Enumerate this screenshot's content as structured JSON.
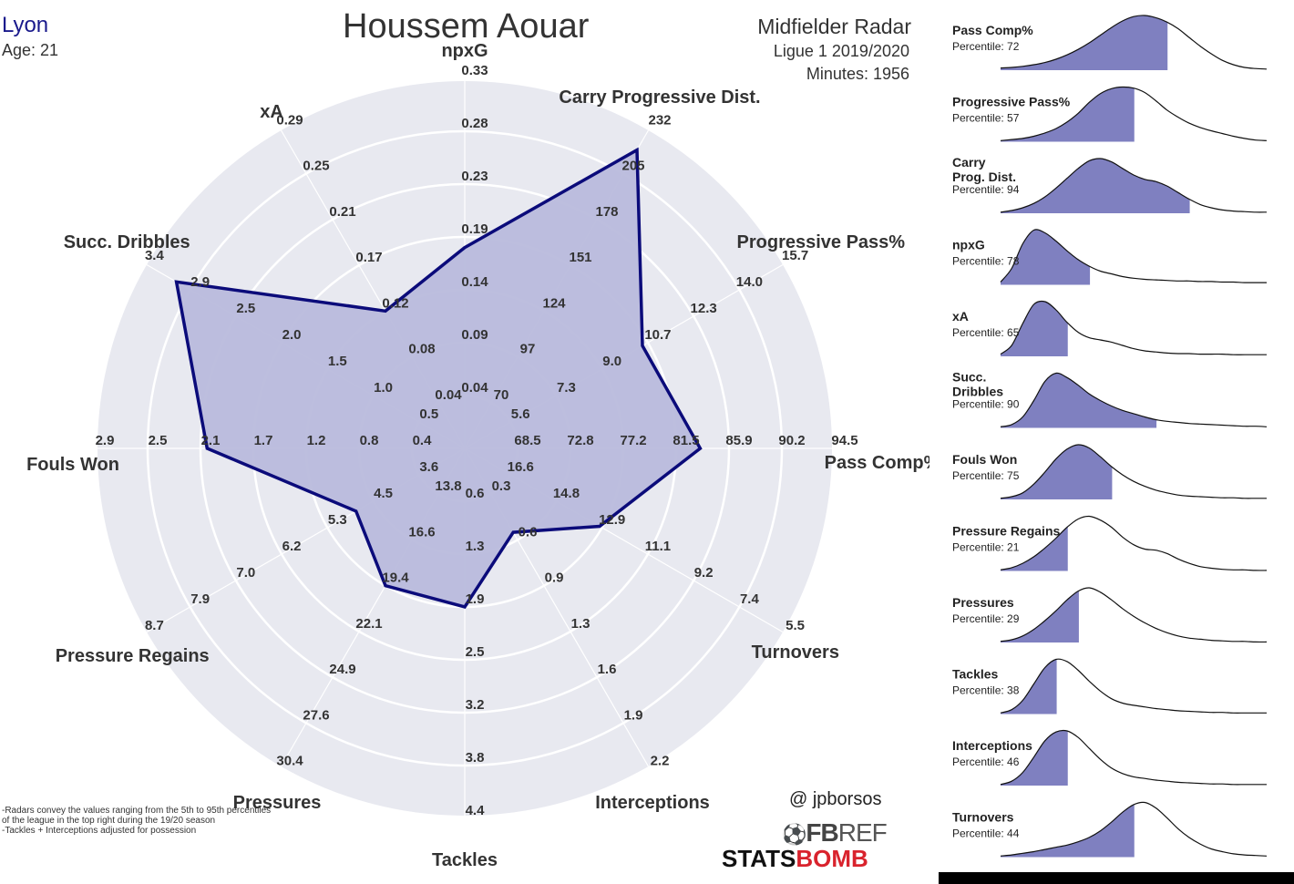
{
  "header": {
    "team": "Lyon",
    "age_label": "Age: 21",
    "player": "Houssem Aouar",
    "radar_type": "Midfielder Radar",
    "league_season": "Ligue 1 2019/2020",
    "minutes_label": "Minutes: 1956"
  },
  "footer": {
    "handle": "@ jpborsos",
    "notes": [
      "-Radars convey the values ranging from the 5th to 95th percentiles",
      "of the league in the top right during the 19/20 season",
      "-Tackles + Interceptions adjusted for possession"
    ],
    "logo_fbref_left": "FB",
    "logo_fbref_right": "REF",
    "logo_statsbomb_left": "STATS",
    "logo_statsbomb_right": "BOMB"
  },
  "colors": {
    "fill": "#b9bbdc",
    "line": "#0b0b7a",
    "background_circle": "#e8e9f0",
    "ring": "#ffffff",
    "density_fill": "#7f80c0"
  },
  "chart_data": [
    {
      "type": "radar",
      "title": "Houssem Aouar",
      "axes": [
        {
          "name": "npxG",
          "ticks": [
            "0.04",
            "0.09",
            "0.14",
            "0.19",
            "0.23",
            "0.28",
            "0.33"
          ],
          "value": 0.18
        },
        {
          "name": "Carry Progressive Dist.",
          "ticks": [
            "70",
            "97",
            "124",
            "151",
            "178",
            "205",
            "232"
          ],
          "value": 219
        },
        {
          "name": "Progressive Pass%",
          "ticks": [
            "5.6",
            "7.3",
            "9.0",
            "10.7",
            "12.3",
            "14.0",
            "15.7"
          ],
          "value": 10.5
        },
        {
          "name": "Pass Comp%",
          "ticks": [
            "68.5",
            "72.8",
            "77.2",
            "81.5",
            "85.9",
            "90.2",
            "94.5"
          ],
          "value": 83.5
        },
        {
          "name": "Turnovers",
          "ticks": [
            "16.6",
            "14.8",
            "12.9",
            "11.1",
            "9.2",
            "7.4",
            "5.5"
          ],
          "value": 13.0
        },
        {
          "name": "Interceptions",
          "ticks": [
            "0.3",
            "0.6",
            "0.9",
            "1.3",
            "1.6",
            "1.9",
            "2.2"
          ],
          "value": 0.55
        },
        {
          "name": "Tackles",
          "ticks": [
            "0.6",
            "1.3",
            "1.9",
            "2.5",
            "3.2",
            "3.8",
            "4.4"
          ],
          "value": 1.9
        },
        {
          "name": "Pressures",
          "ticks": [
            "13.8",
            "16.6",
            "19.4",
            "22.1",
            "24.9",
            "27.6",
            "30.4"
          ],
          "value": 19.4
        },
        {
          "name": "Pressure Regains",
          "ticks": [
            "3.6",
            "4.5",
            "5.3",
            "6.2",
            "7.0",
            "7.9",
            "8.7"
          ],
          "value": 4.8
        },
        {
          "name": "Fouls Won",
          "ticks": [
            "0.4",
            "0.8",
            "1.2",
            "1.7",
            "2.1",
            "2.5",
            "2.9"
          ],
          "value": 2.05
        },
        {
          "name": "Succ. Dribbles",
          "ticks": [
            "0.5",
            "1.0",
            "1.5",
            "2.0",
            "2.5",
            "2.9",
            "3.4"
          ],
          "value": 3.05
        },
        {
          "name": "xA",
          "ticks": [
            "0.04",
            "0.08",
            "0.12",
            "0.17",
            "0.21",
            "0.25",
            "0.29"
          ],
          "value": 0.12
        }
      ]
    },
    {
      "type": "area",
      "panels": [
        {
          "name": "Pass Comp%",
          "percentile_label": "Percentile: 72",
          "percentile": 72,
          "density": [
            0.04,
            0.05,
            0.07,
            0.1,
            0.14,
            0.2,
            0.28,
            0.38,
            0.5,
            0.64,
            0.78,
            0.9,
            0.98,
            1.0,
            0.96,
            0.88,
            0.76,
            0.6,
            0.44,
            0.3,
            0.18,
            0.1,
            0.05,
            0.03,
            0.02
          ]
        },
        {
          "name": "Progressive Pass%",
          "percentile_label": "Percentile: 57",
          "percentile": 57,
          "density": [
            0.02,
            0.04,
            0.06,
            0.1,
            0.16,
            0.24,
            0.36,
            0.52,
            0.72,
            0.88,
            0.97,
            1.0,
            0.98,
            0.9,
            0.75,
            0.58,
            0.45,
            0.34,
            0.26,
            0.2,
            0.15,
            0.1,
            0.06,
            0.03,
            0.02
          ]
        },
        {
          "name": "Carry\nProg. Dist.",
          "percentile_label": "Percentile: 94",
          "percentile": 94,
          "density": [
            0.02,
            0.05,
            0.1,
            0.18,
            0.3,
            0.46,
            0.64,
            0.82,
            0.96,
            1.0,
            0.94,
            0.82,
            0.7,
            0.62,
            0.58,
            0.5,
            0.38,
            0.26,
            0.16,
            0.1,
            0.06,
            0.04,
            0.03,
            0.02,
            0.02
          ]
        },
        {
          "name": "npxG",
          "percentile_label": "Percentile: 78",
          "percentile": 78,
          "density": [
            0.05,
            0.3,
            0.75,
            1.0,
            0.95,
            0.8,
            0.62,
            0.46,
            0.34,
            0.25,
            0.2,
            0.15,
            0.12,
            0.1,
            0.09,
            0.08,
            0.07,
            0.07,
            0.06,
            0.06,
            0.05,
            0.05,
            0.04,
            0.04,
            0.04
          ]
        },
        {
          "name": "xA",
          "percentile_label": "Percentile: 65",
          "percentile": 65,
          "density": [
            0.04,
            0.2,
            0.6,
            0.95,
            1.0,
            0.85,
            0.62,
            0.44,
            0.34,
            0.3,
            0.26,
            0.2,
            0.14,
            0.1,
            0.08,
            0.06,
            0.05,
            0.05,
            0.04,
            0.04,
            0.04,
            0.03,
            0.03,
            0.03,
            0.03
          ]
        },
        {
          "name": "Succ.\nDribbles",
          "percentile_label": "Percentile: 90",
          "percentile": 90,
          "density": [
            0.02,
            0.06,
            0.2,
            0.5,
            0.85,
            1.0,
            0.92,
            0.78,
            0.62,
            0.5,
            0.4,
            0.32,
            0.26,
            0.2,
            0.15,
            0.12,
            0.1,
            0.08,
            0.07,
            0.06,
            0.05,
            0.04,
            0.03,
            0.03,
            0.02
          ]
        },
        {
          "name": "Fouls Won",
          "percentile_label": "Percentile: 75",
          "percentile": 75,
          "density": [
            0.02,
            0.05,
            0.12,
            0.28,
            0.5,
            0.74,
            0.92,
            1.0,
            0.94,
            0.78,
            0.6,
            0.45,
            0.33,
            0.24,
            0.17,
            0.12,
            0.08,
            0.06,
            0.05,
            0.04,
            0.03,
            0.03,
            0.02,
            0.02,
            0.02
          ]
        },
        {
          "name": "Pressure Regains",
          "percentile_label": "Percentile: 21",
          "percentile": 21,
          "density": [
            0.02,
            0.06,
            0.14,
            0.26,
            0.42,
            0.6,
            0.8,
            0.95,
            1.0,
            0.93,
            0.8,
            0.62,
            0.48,
            0.4,
            0.38,
            0.32,
            0.22,
            0.14,
            0.08,
            0.05,
            0.03,
            0.02,
            0.02,
            0.01,
            0.01
          ]
        },
        {
          "name": "Pressures",
          "percentile_label": "Percentile: 29",
          "percentile": 29,
          "density": [
            0.02,
            0.05,
            0.12,
            0.24,
            0.4,
            0.58,
            0.78,
            0.94,
            1.0,
            0.92,
            0.78,
            0.62,
            0.48,
            0.36,
            0.26,
            0.18,
            0.12,
            0.08,
            0.06,
            0.04,
            0.03,
            0.02,
            0.02,
            0.01,
            0.01
          ]
        },
        {
          "name": "Tackles",
          "percentile_label": "Percentile: 38",
          "percentile": 38,
          "density": [
            0.02,
            0.08,
            0.25,
            0.55,
            0.85,
            1.0,
            0.96,
            0.8,
            0.6,
            0.42,
            0.28,
            0.2,
            0.16,
            0.13,
            0.1,
            0.08,
            0.06,
            0.05,
            0.04,
            0.03,
            0.03,
            0.02,
            0.02,
            0.02,
            0.02
          ]
        },
        {
          "name": "Interceptions",
          "percentile_label": "Percentile: 46",
          "percentile": 46,
          "density": [
            0.02,
            0.08,
            0.24,
            0.52,
            0.82,
            0.98,
            1.0,
            0.88,
            0.68,
            0.48,
            0.32,
            0.22,
            0.16,
            0.13,
            0.1,
            0.08,
            0.06,
            0.05,
            0.04,
            0.03,
            0.03,
            0.02,
            0.02,
            0.02,
            0.02
          ]
        },
        {
          "name": "Turnovers",
          "percentile_label": "Percentile: 44",
          "percentile": 44,
          "density": [
            0.02,
            0.04,
            0.07,
            0.1,
            0.14,
            0.18,
            0.22,
            0.28,
            0.36,
            0.48,
            0.64,
            0.82,
            0.96,
            1.0,
            0.9,
            0.72,
            0.52,
            0.36,
            0.24,
            0.15,
            0.1,
            0.06,
            0.04,
            0.03,
            0.02
          ]
        }
      ]
    }
  ]
}
